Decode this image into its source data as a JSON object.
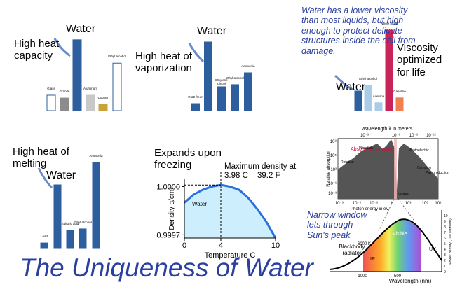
{
  "chart_data": [
    {
      "type": "bar",
      "title": "High heat capacity",
      "categories": [
        "Glass",
        "Granite",
        "Water",
        "Aluminum",
        "Copper",
        "Ethyl alcohol"
      ],
      "values": [
        0.91,
        0.74,
        4.18,
        0.91,
        0.37,
        2.8
      ],
      "colors": [
        "#ffffff",
        "#8c8c8c",
        "#2d5f9e",
        "#c8c8c8",
        "#c9a23c",
        "#ffffff"
      ],
      "highlight": 2
    },
    {
      "type": "bar",
      "title": "High heat of vaporization",
      "categories": [
        "R-22 freon",
        "Water",
        "Ethylene glycol",
        "Ethyl alcohol",
        "Ammonia"
      ],
      "values": [
        230,
        2260,
        785,
        855,
        1245
      ],
      "colors": [
        "#2d5f9e",
        "#2d5f9e",
        "#2d5f9e",
        "#2d5f9e",
        "#2d5f9e"
      ],
      "highlight": 1
    },
    {
      "type": "bar",
      "title": "Viscosity optimized for life",
      "categories": [
        "Water",
        "Ethyl alcohol",
        "Acetone",
        "Whole blood",
        "Gasoline"
      ],
      "values": [
        1.0,
        1.3,
        0.4,
        4.1,
        0.65
      ],
      "colors": [
        "#2d5f9e",
        "#a9cce8",
        "#a9cce8",
        "#c8245a",
        "#f07f52"
      ],
      "highlight": 0
    },
    {
      "type": "bar",
      "title": "High heat of melting",
      "categories": [
        "Lead",
        "Water",
        "Sulfuric acid",
        "Ethyl alcohol",
        "Ammonia"
      ],
      "values": [
        29,
        334,
        95,
        103,
        451
      ],
      "colors": [
        "#2d5f9e",
        "#2d5f9e",
        "#2d5f9e",
        "#2d5f9e",
        "#2d5f9e"
      ],
      "highlight": 1
    },
    {
      "type": "area",
      "title": "Expands upon freezing",
      "annotation": "Maximum density at 3.98 C = 39.2 F",
      "series_label": "Water",
      "xlabel": "Temperature C",
      "ylabel": "Density g/cm³",
      "x": [
        0,
        1,
        2,
        3,
        4,
        5,
        6,
        7,
        8,
        9,
        10
      ],
      "values": [
        0.9999,
        0.99995,
        0.99998,
        1.0,
        1.00001,
        1.0,
        0.99998,
        0.99993,
        0.99986,
        0.99978,
        0.99968
      ],
      "color": "#2a6fdb",
      "xlim": [
        0,
        10
      ],
      "ylim": [
        0.99968,
        1.00005
      ],
      "xticks": [
        0,
        4,
        10
      ],
      "yticks": [
        {
          "value": 1.0,
          "label": "1.0000"
        },
        {
          "value": 0.9997,
          "label": "0.9997"
        }
      ]
    }
  ],
  "viscosity_note": "Water has a lower viscosity than most liquids, but high enough to protect delicate structures inside the cell from damage.",
  "spectrum": {
    "top_label": "Wavelength λ in meters",
    "top_ticks": [
      "10⁻³",
      "10⁻⁶",
      "10⁻⁹",
      "10⁻¹²"
    ],
    "absorption_label": "Absorption by water",
    "regions": [
      "Vibration",
      "Rotation",
      "Photoelectric",
      "Compton",
      "Pair production",
      "Visible"
    ],
    "ylabel": "Relative absorption",
    "yticks": [
      "10⁸",
      "10⁵",
      "10²",
      "10⁻¹",
      "10⁻³"
    ],
    "xlabel": "Photon energy in eV",
    "xticks": [
      "10⁻⁹",
      "10⁻⁶",
      "10⁻³",
      "1",
      "10³",
      "10⁶",
      "10⁹"
    ]
  },
  "blackbody": {
    "note": "Narrow window lets through Sun's peak",
    "source": "Blackbody radiator",
    "temperature": "6000 K",
    "bands": [
      "IR",
      "Visible",
      "UV"
    ],
    "xlabel": "Wavelength (nm)",
    "xticks": [
      "1000",
      "500"
    ],
    "ylabel": "Power density (10¹³ watts/m³)",
    "yticks": [
      "0",
      "1",
      "2",
      "3",
      "4",
      "5",
      "6",
      "7",
      "8",
      "9",
      "10"
    ]
  },
  "title": "The Uniqueness of Water"
}
